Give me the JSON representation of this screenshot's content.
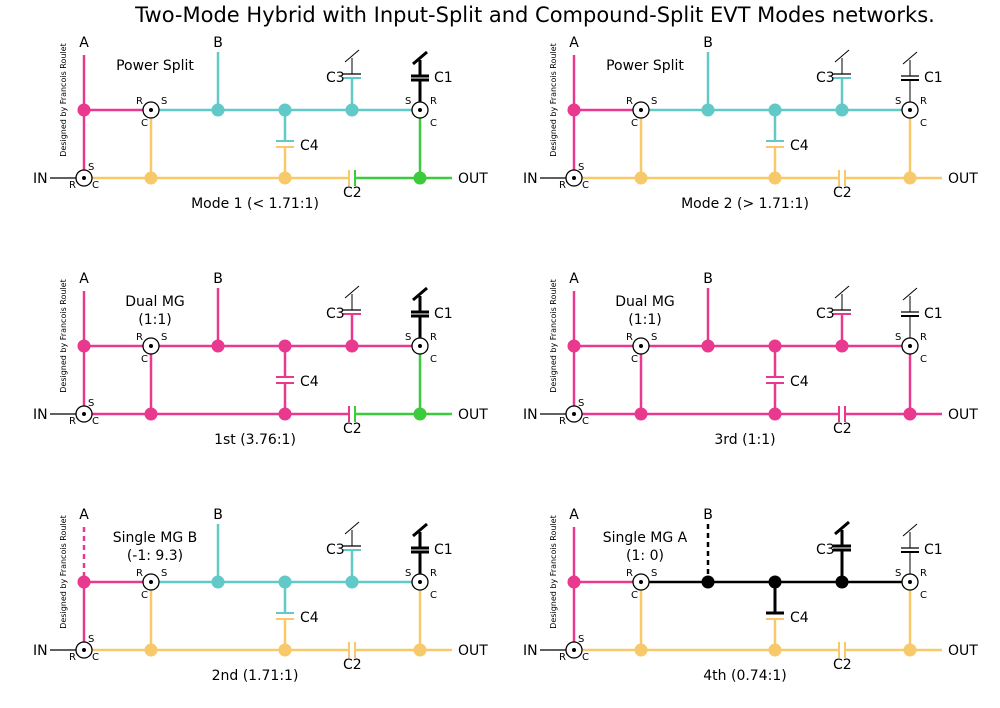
{
  "title": "Two-Mode Hybrid with Input-Split and Compound-Split EVT Modes networks.",
  "labels": {
    "a": "A",
    "b": "B",
    "in": "IN",
    "out": "OUT",
    "c1": "C1",
    "c2": "C2",
    "c3": "C3",
    "c4": "C4",
    "r": "R",
    "s": "S",
    "c": "C",
    "credit": "Designed by Francois Roulet"
  },
  "colors": {
    "pink": "#e8398f",
    "teal": "#62c9c9",
    "yellow": "#f8c96b",
    "green": "#3ccb3c",
    "black": "#000000"
  },
  "panels": [
    {
      "name": "Power Split",
      "sub": "",
      "caption": "Mode 1 (< 1.71:1)",
      "a": "pink",
      "a_dashed": false,
      "b": "teal",
      "b_dashed": false,
      "rail": "teal",
      "c3": "teal",
      "c3_locked": false,
      "c1": "black",
      "c1_locked": true,
      "p1down": "yellow",
      "c4top": "teal",
      "c4bot": "yellow",
      "bot": "yellow",
      "botR": "green",
      "p2down": "green"
    },
    {
      "name": "Power Split",
      "sub": "",
      "caption": "Mode 2 (> 1.71:1)",
      "a": "pink",
      "a_dashed": false,
      "b": "teal",
      "b_dashed": false,
      "rail": "teal",
      "c3": "teal",
      "c3_locked": false,
      "c1": "black",
      "c1_locked": false,
      "p1down": "yellow",
      "c4top": "teal",
      "c4bot": "yellow",
      "bot": "yellow",
      "botR": "yellow",
      "p2down": "yellow"
    },
    {
      "name": "Dual MG",
      "sub": "(1:1)",
      "caption": "1st (3.76:1)",
      "a": "pink",
      "a_dashed": false,
      "b": "pink",
      "b_dashed": false,
      "rail": "pink",
      "c3": "pink",
      "c3_locked": false,
      "c1": "black",
      "c1_locked": true,
      "p1down": "pink",
      "c4top": "pink",
      "c4bot": "pink",
      "bot": "pink",
      "botR": "green",
      "p2down": "green"
    },
    {
      "name": "Dual MG",
      "sub": "(1:1)",
      "caption": "3rd (1:1)",
      "a": "pink",
      "a_dashed": false,
      "b": "pink",
      "b_dashed": false,
      "rail": "pink",
      "c3": "pink",
      "c3_locked": false,
      "c1": "black",
      "c1_locked": false,
      "p1down": "pink",
      "c4top": "pink",
      "c4bot": "pink",
      "bot": "pink",
      "botR": "pink",
      "p2down": "pink"
    },
    {
      "name": "Single MG B",
      "sub": "(-1: 9.3)",
      "caption": "2nd (1.71:1)",
      "a": "pink",
      "a_dashed": true,
      "b": "teal",
      "b_dashed": false,
      "rail": "teal",
      "c3": "teal",
      "c3_locked": false,
      "c1": "black",
      "c1_locked": true,
      "p1down": "yellow",
      "c4top": "teal",
      "c4bot": "yellow",
      "bot": "yellow",
      "botR": "yellow",
      "p2down": "yellow"
    },
    {
      "name": "Single MG A",
      "sub": "(1: 0)",
      "caption": "4th (0.74:1)",
      "a": "pink",
      "a_dashed": false,
      "b": "black",
      "b_dashed": true,
      "rail": "black",
      "c3": "black",
      "c3_locked": true,
      "c1": "black",
      "c1_locked": false,
      "p1down": "yellow",
      "c4top": "black",
      "c4bot": "yellow",
      "bot": "yellow",
      "botR": "yellow",
      "p2down": "yellow"
    }
  ]
}
